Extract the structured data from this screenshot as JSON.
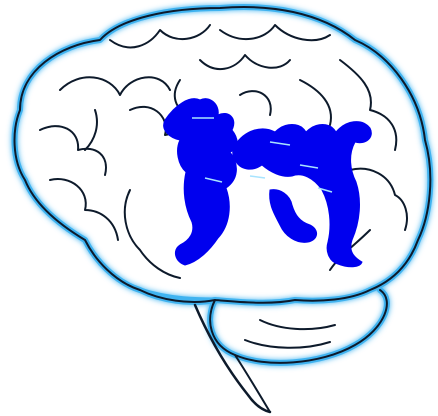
{
  "illustration": {
    "subject": "brain-icon",
    "highlight_region": "hippocampus-icon",
    "colors": {
      "background": "#ffffff",
      "outline": "#0d1a2b",
      "glow": "#3fb3f0",
      "glow_light": "#a8e4ff",
      "highlight": "#0000ee"
    }
  }
}
